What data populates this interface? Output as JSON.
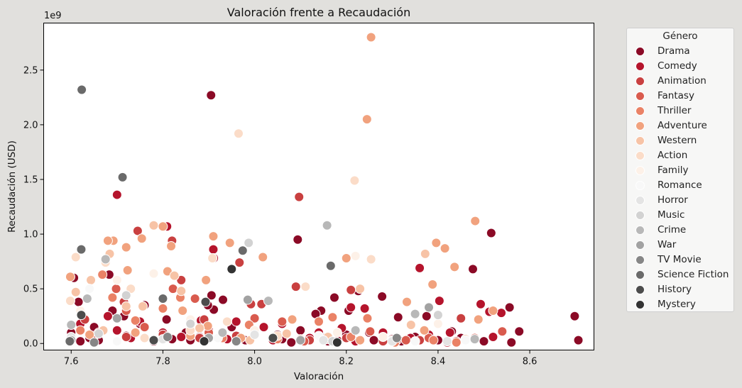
{
  "chart_data": {
    "type": "scatter",
    "title": "Valoración frente a Recaudación",
    "xlabel": "Valoración",
    "ylabel": "Recaudación (USD)",
    "y_offset_label": "1e9",
    "xlim": [
      7.54,
      8.74
    ],
    "ylim": [
      -0.06,
      2.93
    ],
    "xticks": [
      7.6,
      7.8,
      8.0,
      8.2,
      8.4,
      8.6
    ],
    "xtick_labels": [
      "7.6",
      "7.8",
      "8.0",
      "8.2",
      "8.4",
      "8.6"
    ],
    "yticks": [
      0.0,
      0.5,
      1.0,
      1.5,
      2.0,
      2.5
    ],
    "ytick_labels": [
      "0.0",
      "0.5",
      "1.0",
      "1.5",
      "2.0",
      "2.5"
    ],
    "grid": false,
    "legend_title": "Género",
    "legend_position": "outside-right",
    "series": [
      {
        "name": "Drama",
        "color": "#8b0a26",
        "points": [
          [
            7.905,
            2.27
          ],
          [
            8.094,
            0.95
          ],
          [
            8.516,
            1.01
          ],
          [
            8.698,
            0.25
          ],
          [
            8.706,
            0.03
          ],
          [
            8.577,
            0.11
          ],
          [
            8.556,
            0.33
          ],
          [
            8.476,
            0.68
          ],
          [
            8.375,
            0.25
          ],
          [
            8.313,
            0.24
          ],
          [
            8.278,
            0.43
          ],
          [
            8.226,
            0.48
          ],
          [
            8.205,
            0.3
          ],
          [
            8.174,
            0.42
          ],
          [
            8.145,
            0.3
          ],
          [
            8.133,
            0.27
          ],
          [
            7.931,
            0.4
          ],
          [
            7.911,
            0.31
          ],
          [
            7.906,
            0.44
          ],
          [
            7.898,
            0.35
          ],
          [
            7.808,
            0.22
          ],
          [
            7.76,
            0.35
          ],
          [
            7.715,
            0.25
          ],
          [
            7.683,
            0.63
          ],
          [
            7.606,
            0.6
          ],
          [
            7.616,
            0.38
          ],
          [
            7.69,
            0.3
          ],
          [
            7.6,
            0.1
          ],
          [
            7.65,
            0.15
          ],
          [
            7.7,
            0.12
          ],
          [
            7.75,
            0.18
          ],
          [
            7.85,
            0.1
          ],
          [
            7.95,
            0.15
          ],
          [
            8.0,
            0.1
          ],
          [
            8.05,
            0.08
          ],
          [
            8.1,
            0.12
          ],
          [
            8.15,
            0.05
          ],
          [
            8.2,
            0.08
          ],
          [
            8.25,
            0.1
          ],
          [
            8.3,
            0.04
          ],
          [
            8.35,
            0.06
          ],
          [
            8.4,
            0.03
          ],
          [
            8.45,
            0.05
          ],
          [
            8.5,
            0.02
          ],
          [
            8.56,
            0.01
          ],
          [
            7.64,
            0.05
          ],
          [
            7.72,
            0.07
          ],
          [
            7.82,
            0.04
          ],
          [
            7.88,
            0.06
          ],
          [
            7.98,
            0.03
          ],
          [
            8.06,
            0.04
          ],
          [
            8.16,
            0.02
          ],
          [
            8.26,
            0.03
          ],
          [
            8.32,
            0.02
          ],
          [
            7.62,
            0.02
          ],
          [
            7.66,
            0.03
          ],
          [
            7.78,
            0.02
          ],
          [
            7.86,
            0.03
          ],
          [
            7.96,
            0.02
          ],
          [
            8.08,
            0.01
          ],
          [
            8.18,
            0.03
          ],
          [
            8.43,
            0.11
          ]
        ]
      },
      {
        "name": "Comedy",
        "color": "#b5142c",
        "points": [
          [
            7.7,
            1.36
          ],
          [
            7.809,
            1.07
          ],
          [
            7.91,
            0.86
          ],
          [
            8.21,
            0.33
          ],
          [
            8.24,
            0.32
          ],
          [
            8.36,
            0.69
          ],
          [
            8.403,
            0.39
          ],
          [
            8.426,
            0.1
          ],
          [
            8.493,
            0.36
          ],
          [
            8.512,
            0.29
          ],
          [
            8.538,
            0.28
          ],
          [
            7.911,
            0.78
          ],
          [
            7.883,
            0.21
          ],
          [
            7.75,
            0.2
          ],
          [
            7.68,
            0.25
          ],
          [
            7.62,
            0.18
          ],
          [
            7.7,
            0.12
          ],
          [
            7.76,
            0.15
          ],
          [
            7.8,
            0.1
          ],
          [
            7.9,
            0.12
          ],
          [
            7.96,
            0.2
          ],
          [
            8.02,
            0.15
          ],
          [
            8.06,
            0.18
          ],
          [
            8.14,
            0.1
          ],
          [
            8.19,
            0.14
          ],
          [
            8.28,
            0.1
          ],
          [
            8.34,
            0.05
          ],
          [
            8.38,
            0.08
          ],
          [
            8.46,
            0.04
          ],
          [
            8.52,
            0.06
          ],
          [
            7.64,
            0.08
          ],
          [
            7.73,
            0.05
          ],
          [
            7.84,
            0.06
          ],
          [
            7.94,
            0.04
          ],
          [
            8.04,
            0.03
          ],
          [
            8.12,
            0.05
          ],
          [
            8.22,
            0.02
          ],
          [
            8.42,
            0.01
          ]
        ]
      },
      {
        "name": "Animation",
        "color": "#c94040",
        "points": [
          [
            8.097,
            1.34
          ],
          [
            7.745,
            1.03
          ],
          [
            7.82,
            0.94
          ],
          [
            8.09,
            0.52
          ],
          [
            7.967,
            0.74
          ],
          [
            8.015,
            0.36
          ],
          [
            7.992,
            0.36
          ],
          [
            7.89,
            0.22
          ],
          [
            8.21,
            0.49
          ],
          [
            8.31,
            0.03
          ],
          [
            8.45,
            0.23
          ],
          [
            7.84,
            0.58
          ],
          [
            7.715,
            0.38
          ],
          [
            7.63,
            0.22
          ],
          [
            7.66,
            0.1
          ],
          [
            7.72,
            0.06
          ],
          [
            7.8,
            0.08
          ],
          [
            7.88,
            0.05
          ],
          [
            7.96,
            0.07
          ],
          [
            8.04,
            0.05
          ],
          [
            8.12,
            0.03
          ],
          [
            8.2,
            0.05
          ],
          [
            8.28,
            0.02
          ],
          [
            8.36,
            0.03
          ],
          [
            8.44,
            0.02
          ]
        ]
      },
      {
        "name": "Fantasy",
        "color": "#d95b4e",
        "points": [
          [
            7.698,
            0.5
          ],
          [
            7.822,
            0.5
          ],
          [
            7.87,
            0.41
          ],
          [
            8.0,
            0.23
          ],
          [
            8.06,
            0.2
          ],
          [
            8.108,
            0.02
          ],
          [
            8.252,
            0.11
          ],
          [
            8.33,
            0.03
          ],
          [
            8.48,
            0.05
          ],
          [
            7.76,
            0.15
          ],
          [
            7.65,
            0.07
          ],
          [
            7.72,
            0.3
          ],
          [
            7.9,
            0.1
          ],
          [
            8.16,
            0.04
          ],
          [
            8.38,
            0.05
          ],
          [
            8.54,
            0.11
          ]
        ]
      },
      {
        "name": "Thriller",
        "color": "#ea8266",
        "points": [
          [
            7.668,
            0.63
          ],
          [
            7.8,
            0.32
          ],
          [
            7.838,
            0.42
          ],
          [
            7.988,
            0.17
          ],
          [
            8.05,
            0.04
          ],
          [
            8.14,
            0.2
          ],
          [
            8.17,
            0.24
          ],
          [
            8.246,
            0.23
          ],
          [
            8.306,
            0.01
          ],
          [
            8.44,
            0.01
          ],
          [
            7.74,
            0.21
          ],
          [
            7.62,
            0.12
          ],
          [
            7.69,
            0.42
          ],
          [
            7.93,
            0.05
          ],
          [
            8.21,
            0.06
          ],
          [
            8.39,
            0.03
          ]
        ]
      },
      {
        "name": "Adventure",
        "color": "#f1a27e",
        "points": [
          [
            8.254,
            2.8
          ],
          [
            8.245,
            2.05
          ],
          [
            8.481,
            1.12
          ],
          [
            8.415,
            0.87
          ],
          [
            8.396,
            0.92
          ],
          [
            8.436,
            0.7
          ],
          [
            8.388,
            0.54
          ],
          [
            8.488,
            0.22
          ],
          [
            8.332,
            0.38
          ],
          [
            8.018,
            0.79
          ],
          [
            7.946,
            0.92
          ],
          [
            7.91,
            0.98
          ],
          [
            7.894,
            0.58
          ],
          [
            7.818,
            0.89
          ],
          [
            7.8,
            1.07
          ],
          [
            7.754,
            0.96
          ],
          [
            7.72,
            0.88
          ],
          [
            7.692,
            0.94
          ],
          [
            7.68,
            0.94
          ],
          [
            7.598,
            0.61
          ],
          [
            7.723,
            0.67
          ],
          [
            7.81,
            0.66
          ],
          [
            7.843,
            0.3
          ],
          [
            7.898,
            0.16
          ],
          [
            8.082,
            0.22
          ],
          [
            8.2,
            0.78
          ],
          [
            8.37,
            0.12
          ],
          [
            8.52,
            0.3
          ],
          [
            7.64,
            0.08
          ],
          [
            7.74,
            0.1
          ],
          [
            7.86,
            0.07
          ],
          [
            7.97,
            0.05
          ],
          [
            8.1,
            0.04
          ],
          [
            8.23,
            0.03
          ],
          [
            8.46,
            0.04
          ]
        ]
      },
      {
        "name": "Western",
        "color": "#f7c3a6",
        "points": [
          [
            7.78,
            1.08
          ],
          [
            7.756,
            0.34
          ],
          [
            7.825,
            0.62
          ],
          [
            7.684,
            0.82
          ],
          [
            7.643,
            0.58
          ],
          [
            7.61,
            0.47
          ],
          [
            7.72,
            0.34
          ],
          [
            7.84,
            0.48
          ],
          [
            8.23,
            0.5
          ],
          [
            8.372,
            0.82
          ],
          [
            8.341,
            0.17
          ],
          [
            7.99,
            0.03
          ],
          [
            8.07,
            0.09
          ],
          [
            7.67,
            0.12
          ],
          [
            7.88,
            0.14
          ],
          [
            8.16,
            0.06
          ]
        ]
      },
      {
        "name": "Action",
        "color": "#fbdcc8",
        "points": [
          [
            7.965,
            1.92
          ],
          [
            8.218,
            1.49
          ],
          [
            7.908,
            0.78
          ],
          [
            7.61,
            0.79
          ],
          [
            7.598,
            0.39
          ],
          [
            7.675,
            0.74
          ],
          [
            7.73,
            0.5
          ],
          [
            7.94,
            0.2
          ],
          [
            8.111,
            0.52
          ],
          [
            8.254,
            0.77
          ],
          [
            7.86,
            0.12
          ],
          [
            7.76,
            0.05
          ],
          [
            8.05,
            0.07
          ],
          [
            8.3,
            0.03
          ]
        ]
      },
      {
        "name": "Family",
        "color": "#fdf1e8",
        "points": [
          [
            8.22,
            0.8
          ],
          [
            7.78,
            0.64
          ],
          [
            7.7,
            0.58
          ],
          [
            8.18,
            0.1
          ],
          [
            8.4,
            0.18
          ],
          [
            7.62,
            0.3
          ],
          [
            7.86,
            0.22
          ],
          [
            8.0,
            0.12
          ],
          [
            8.28,
            0.06
          ]
        ]
      },
      {
        "name": "Romance",
        "color": "#f8f8f8",
        "points": [
          [
            7.64,
            0.5
          ],
          [
            7.92,
            0.05
          ],
          [
            8.14,
            0.07
          ],
          [
            8.35,
            0.02
          ],
          [
            7.7,
            0.02
          ],
          [
            8.46,
            0.03
          ]
        ]
      },
      {
        "name": "Horror",
        "color": "#e4e4e4",
        "points": [
          [
            8.0,
            0.08
          ],
          [
            8.3,
            0.02
          ],
          [
            7.8,
            0.04
          ],
          [
            7.6,
            0.06
          ],
          [
            8.15,
            0.03
          ],
          [
            8.42,
            0.02
          ]
        ]
      },
      {
        "name": "Music",
        "color": "#d2d2d2",
        "points": [
          [
            7.987,
            0.92
          ],
          [
            7.72,
            0.44
          ],
          [
            8.17,
            0.02
          ],
          [
            8.4,
            0.26
          ],
          [
            7.86,
            0.18
          ],
          [
            7.66,
            0.09
          ]
        ]
      },
      {
        "name": "Crime",
        "color": "#b8b8b8",
        "points": [
          [
            8.158,
            1.08
          ],
          [
            7.675,
            0.77
          ],
          [
            7.635,
            0.41
          ],
          [
            8.35,
            0.27
          ],
          [
            8.03,
            0.39
          ],
          [
            7.93,
            0.1
          ],
          [
            7.6,
            0.17
          ],
          [
            8.22,
            0.12
          ],
          [
            8.48,
            0.04
          ]
        ]
      },
      {
        "name": "War",
        "color": "#a2a2a2",
        "points": [
          [
            7.985,
            0.4
          ],
          [
            8.38,
            0.33
          ],
          [
            7.7,
            0.23
          ],
          [
            7.9,
            0.05
          ],
          [
            8.1,
            0.03
          ],
          [
            7.6,
            0.03
          ]
        ]
      },
      {
        "name": "TV Movie",
        "color": "#868686",
        "points": [
          [
            7.81,
            0.06
          ],
          [
            7.96,
            0.02
          ],
          [
            8.31,
            0.05
          ],
          [
            7.65,
            0.01
          ]
        ]
      },
      {
        "name": "Science Fiction",
        "color": "#6a6a6a",
        "points": [
          [
            7.623,
            2.32
          ],
          [
            7.712,
            1.52
          ],
          [
            7.622,
            0.86
          ],
          [
            8.166,
            0.71
          ],
          [
            7.974,
            0.85
          ],
          [
            7.8,
            0.41
          ],
          [
            7.597,
            0.02
          ]
        ]
      },
      {
        "name": "History",
        "color": "#4c4c4c",
        "points": [
          [
            7.622,
            0.26
          ],
          [
            7.893,
            0.38
          ],
          [
            8.04,
            0.05
          ],
          [
            7.78,
            0.03
          ]
        ]
      },
      {
        "name": "Mystery",
        "color": "#333333",
        "points": [
          [
            7.95,
            0.68
          ],
          [
            7.89,
            0.02
          ],
          [
            8.18,
            0.01
          ]
        ]
      }
    ]
  }
}
